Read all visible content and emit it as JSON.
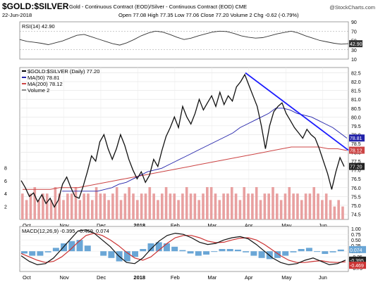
{
  "header": {
    "symbol": "$GOLD:$SILVER",
    "description": "Gold - Continuous Contract (EOD)/Silver - Continuous Contract (EOD) CME",
    "date": "22-Jun-2018",
    "quote": "Open 77.08 High 77.35 Low 77.06 Close 77.20 Volume 2 Chg -0.62 (-0.79%)",
    "watermark": "@StockCharts.com"
  },
  "chart_data": [
    {
      "type": "line",
      "panel": "RSI",
      "legend": [
        "RSI(14) 42.90"
      ],
      "y_ticks": [
        10,
        30,
        50,
        70,
        90
      ],
      "ylim": [
        10,
        90
      ],
      "last_value_label": "42.90",
      "reference_lines": [
        30,
        70
      ],
      "series": [
        {
          "name": "RSI(14)",
          "color": "#333333",
          "values": [
            52,
            48,
            46,
            44,
            41,
            45,
            49,
            55,
            61,
            63,
            58,
            53,
            48,
            43,
            40,
            45,
            52,
            60,
            66,
            70,
            68,
            63,
            57,
            52,
            55,
            60,
            64,
            68,
            70,
            69,
            65,
            60,
            57,
            55,
            56,
            60,
            64,
            67,
            70,
            66,
            60,
            55,
            50,
            47,
            44,
            42,
            43
          ]
        }
      ]
    },
    {
      "type": "line",
      "panel": "Price",
      "legend": [
        "$GOLD:$SILVER (Daily) 77.20",
        "MA(50) 78.81",
        "MA(200) 78.12",
        "Volume 2"
      ],
      "y_ticks": [
        74.5,
        75.0,
        75.5,
        76.0,
        76.5,
        77.0,
        77.5,
        78.0,
        78.5,
        79.0,
        79.5,
        80.0,
        80.5,
        81.0,
        81.5,
        82.0,
        82.5
      ],
      "ylim": [
        74.2,
        82.8
      ],
      "volume_ticks": [
        2,
        4,
        6,
        8
      ],
      "volume_ylim": [
        0,
        10
      ],
      "last_value_labels": {
        "ma50": "78.81",
        "ma200": "78.12",
        "price": "77.20"
      },
      "x_labels": [
        "Oct",
        "Nov",
        "Dec",
        "2018",
        "Feb",
        "Mar",
        "Apr",
        "May",
        "Jun"
      ],
      "series": [
        {
          "name": "$GOLD:$SILVER (Daily)",
          "color": "#111111",
          "values": [
            76.4,
            76.0,
            75.5,
            75.7,
            75.2,
            75.6,
            75.1,
            75.4,
            74.9,
            75.3,
            76.2,
            76.6,
            76.0,
            75.5,
            75.4,
            76.1,
            76.9,
            77.8,
            77.5,
            78.6,
            79.0,
            78.2,
            77.6,
            78.2,
            79.0,
            78.4,
            77.6,
            77.0,
            76.5,
            76.9,
            76.3,
            76.7,
            77.6,
            77.2,
            78.1,
            78.9,
            79.4,
            80.0,
            79.4,
            80.6,
            80.0,
            79.6,
            80.2,
            81.0,
            80.4,
            80.8,
            81.2,
            80.6,
            81.4,
            80.7,
            81.2,
            80.9,
            81.7,
            82.0,
            82.4,
            81.8,
            81.2,
            80.6,
            79.5,
            78.2,
            79.5,
            80.3,
            80.6,
            80.8,
            80.2,
            79.8,
            79.4,
            79.1,
            78.8,
            79.3,
            79.0,
            78.8,
            78.2,
            77.5,
            76.8,
            75.9,
            76.9,
            77.7,
            77.2
          ]
        },
        {
          "name": "MA(50)",
          "color": "#2222aa",
          "values": [
            75.8,
            75.8,
            75.8,
            75.8,
            75.8,
            75.8,
            75.9,
            76.0,
            76.2,
            76.3,
            76.5,
            76.7,
            76.9,
            77.0,
            77.1,
            77.3,
            77.5,
            77.7,
            77.9,
            78.1,
            78.3,
            78.5,
            78.7,
            78.9,
            79.1,
            79.4,
            79.6,
            79.8,
            80.0,
            80.2,
            80.5,
            80.5,
            80.4,
            80.2,
            80.1,
            80.0,
            79.8,
            79.6,
            79.4,
            79.1,
            78.8
          ]
        },
        {
          "name": "MA(200)",
          "color": "#cc4444",
          "values": [
            75.9,
            75.9,
            75.9,
            75.9,
            76.0,
            76.0,
            76.0,
            76.1,
            76.2,
            76.3,
            76.4,
            76.5,
            76.6,
            76.7,
            76.8,
            76.9,
            77.0,
            77.1,
            77.2,
            77.3,
            77.4,
            77.5,
            77.6,
            77.7,
            77.8,
            77.9,
            78.0,
            78.1,
            78.2,
            78.3,
            78.3,
            78.3,
            78.3,
            78.2,
            78.2,
            78.1
          ]
        },
        {
          "name": "Volume",
          "color": "#e8a0a0",
          "values": [
            4,
            3,
            4,
            5,
            3,
            4,
            4,
            3,
            5,
            4,
            3,
            4,
            4,
            5,
            3,
            4,
            4,
            3,
            5,
            4,
            4,
            3,
            4,
            5,
            3,
            4,
            5,
            4,
            3,
            4,
            4,
            5,
            4,
            3,
            4,
            5,
            4,
            4,
            3,
            4,
            5,
            4,
            4,
            3,
            4,
            5,
            5,
            4,
            3,
            4,
            4,
            5,
            4,
            3,
            5,
            4,
            4,
            5,
            3,
            4,
            4,
            5,
            4,
            3,
            4,
            5,
            4,
            4,
            3,
            4,
            4,
            5,
            4,
            3,
            4,
            3,
            2,
            3,
            2
          ]
        }
      ],
      "trendline": {
        "color": "#1a1aff",
        "from": 82.5,
        "to": 78.12
      }
    },
    {
      "type": "line",
      "panel": "MACD",
      "legend": "MACD(12,26,9) -0.395, -0.469, 0.074",
      "y_ticks": [
        1.0,
        0.75,
        0.5,
        0.25,
        0.0,
        -0.25,
        -0.5,
        -0.75
      ],
      "ylim": [
        -0.9,
        1.1
      ],
      "x_labels": [
        "Oct",
        "Nov",
        "Dec",
        "2018",
        "Feb",
        "Mar",
        "Apr",
        "May",
        "Jun"
      ],
      "last_value_labels": [
        "0.074",
        "-0.395",
        "-0.469"
      ],
      "series": [
        {
          "name": "MACD",
          "color": "#111111",
          "values": [
            -0.2,
            -0.45,
            -0.6,
            -0.55,
            -0.3,
            0.1,
            0.5,
            0.9,
            0.95,
            0.8,
            0.5,
            0.2,
            -0.2,
            -0.5,
            -0.55,
            -0.3,
            0.1,
            0.45,
            0.7,
            0.8,
            0.75,
            0.6,
            0.4,
            0.3,
            0.35,
            0.5,
            0.6,
            0.65,
            0.55,
            0.3,
            0.0,
            -0.3,
            -0.5,
            -0.6,
            -0.55,
            -0.4,
            -0.3,
            -0.45,
            -0.6,
            -0.55,
            -0.395
          ]
        },
        {
          "name": "Signal",
          "color": "#cc3333",
          "values": [
            -0.1,
            -0.25,
            -0.4,
            -0.5,
            -0.45,
            -0.25,
            0.05,
            0.4,
            0.7,
            0.8,
            0.7,
            0.5,
            0.25,
            -0.05,
            -0.3,
            -0.4,
            -0.25,
            0.05,
            0.35,
            0.6,
            0.7,
            0.7,
            0.6,
            0.45,
            0.38,
            0.4,
            0.5,
            0.58,
            0.6,
            0.5,
            0.3,
            0.05,
            -0.2,
            -0.4,
            -0.5,
            -0.5,
            -0.45,
            -0.42,
            -0.48,
            -0.5,
            -0.469
          ]
        },
        {
          "name": "Histogram",
          "color": "#6aa6d6",
          "values": [
            -0.1,
            -0.2,
            -0.2,
            -0.05,
            0.15,
            0.35,
            0.45,
            0.5,
            0.25,
            0.0,
            -0.2,
            -0.3,
            -0.45,
            -0.45,
            -0.25,
            0.1,
            0.35,
            0.4,
            0.35,
            0.2,
            0.05,
            -0.1,
            -0.2,
            -0.15,
            -0.03,
            0.1,
            0.1,
            0.07,
            -0.05,
            -0.2,
            -0.3,
            -0.35,
            -0.3,
            -0.2,
            -0.05,
            0.1,
            0.15,
            -0.03,
            -0.12,
            -0.05,
            0.074
          ]
        }
      ]
    }
  ]
}
